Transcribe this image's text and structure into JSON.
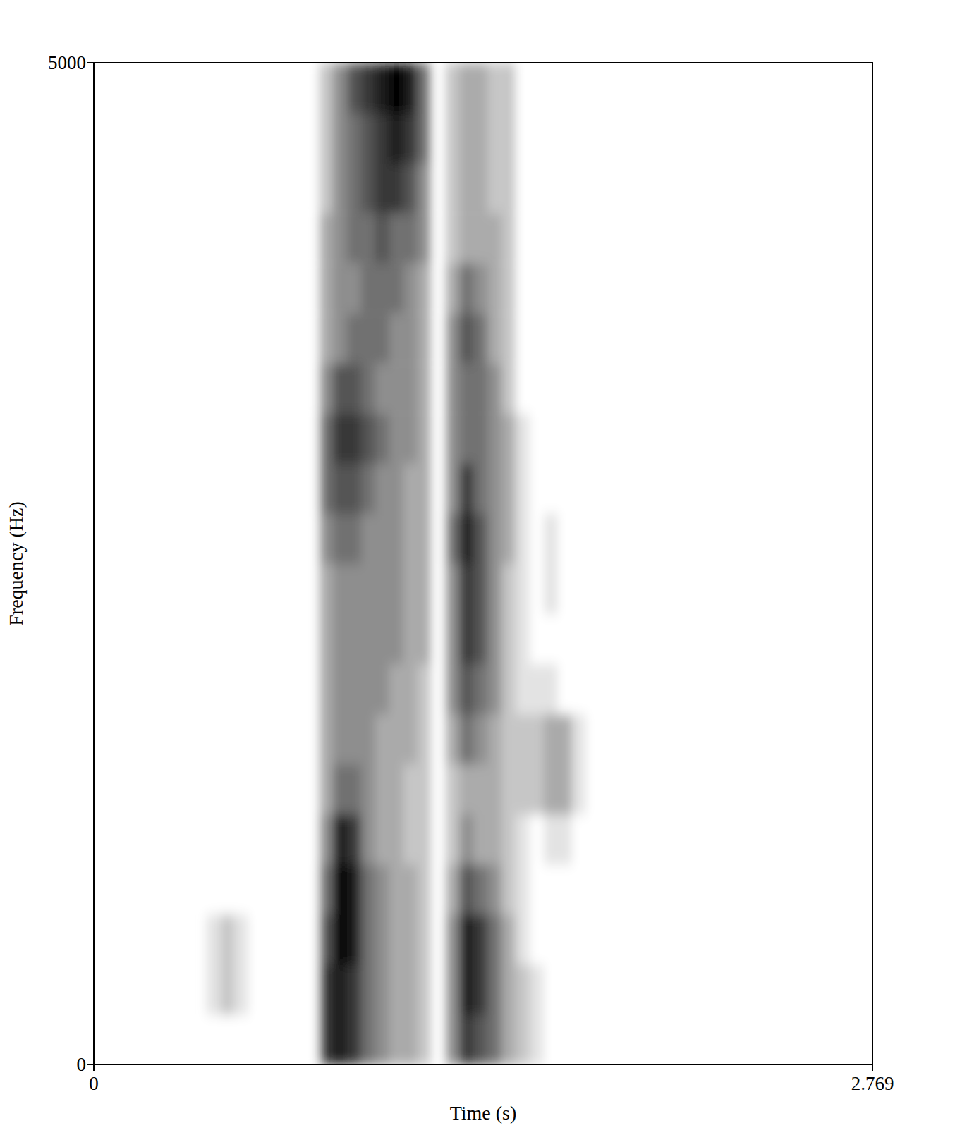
{
  "chart_data": {
    "type": "heatmap",
    "x_label": "Time (s)",
    "y_label": "Frequency (Hz)",
    "xlim": [
      0,
      2.769
    ],
    "ylim": [
      0,
      5000
    ],
    "xticks": [
      0,
      2.769
    ],
    "yticks": [
      0,
      5000
    ],
    "zlim": [
      0,
      9
    ],
    "x": [
      0.425,
      0.475,
      0.525,
      0.575,
      0.625,
      0.675,
      0.725,
      0.775,
      0.825,
      0.875,
      0.925,
      0.975,
      1.025,
      1.075,
      1.125,
      1.175,
      1.225,
      1.275,
      1.325,
      1.375,
      1.425,
      1.475,
      1.525,
      1.575,
      1.625,
      1.675,
      1.725,
      1.775
    ],
    "y": [
      125,
      375,
      625,
      875,
      1125,
      1375,
      1625,
      1875,
      2125,
      2375,
      2625,
      2875,
      3125,
      3375,
      3625,
      3875,
      4125,
      4375,
      4625,
      4875
    ],
    "cells": [
      [
        0,
        0,
        0,
        0,
        0,
        0,
        0,
        0,
        7,
        8,
        7,
        5,
        4,
        3,
        3,
        2,
        0,
        4,
        7,
        6,
        5,
        3,
        2,
        1,
        0,
        0,
        0,
        0
      ],
      [
        1,
        2,
        1,
        0,
        0,
        0,
        0,
        0,
        7,
        8,
        7,
        5,
        4,
        3,
        3,
        2,
        0,
        4,
        8,
        7,
        5,
        3,
        2,
        1,
        0,
        0,
        0,
        0
      ],
      [
        1,
        2,
        1,
        0,
        0,
        0,
        0,
        0,
        6,
        9,
        8,
        5,
        4,
        3,
        3,
        2,
        0,
        4,
        8,
        7,
        5,
        3,
        1,
        0,
        0,
        0,
        0,
        0
      ],
      [
        0,
        0,
        0,
        0,
        0,
        0,
        0,
        0,
        5,
        9,
        8,
        5,
        4,
        3,
        3,
        2,
        0,
        3,
        6,
        5,
        4,
        2,
        1,
        0,
        0,
        0,
        0,
        0
      ],
      [
        0,
        0,
        0,
        0,
        0,
        0,
        0,
        0,
        4,
        8,
        7,
        4,
        3,
        3,
        2,
        2,
        0,
        2,
        4,
        3,
        3,
        2,
        1,
        0,
        1,
        1,
        0,
        0
      ],
      [
        0,
        0,
        0,
        0,
        0,
        0,
        0,
        0,
        3,
        5,
        5,
        4,
        3,
        3,
        2,
        2,
        0,
        2,
        3,
        3,
        3,
        2,
        2,
        2,
        3,
        3,
        1,
        0
      ],
      [
        0,
        0,
        0,
        0,
        0,
        0,
        0,
        0,
        3,
        4,
        4,
        4,
        3,
        3,
        3,
        2,
        0,
        3,
        5,
        4,
        3,
        2,
        2,
        2,
        3,
        3,
        1,
        0
      ],
      [
        0,
        0,
        0,
        0,
        0,
        0,
        0,
        0,
        3,
        4,
        4,
        4,
        4,
        3,
        3,
        2,
        0,
        4,
        6,
        5,
        4,
        2,
        1,
        1,
        1,
        0,
        0,
        0
      ],
      [
        0,
        0,
        0,
        0,
        0,
        0,
        0,
        0,
        3,
        4,
        4,
        4,
        4,
        4,
        3,
        3,
        0,
        4,
        7,
        6,
        4,
        2,
        1,
        0,
        0,
        0,
        0,
        0
      ],
      [
        0,
        0,
        0,
        0,
        0,
        0,
        0,
        0,
        3,
        4,
        4,
        4,
        4,
        4,
        3,
        3,
        0,
        4,
        7,
        6,
        4,
        2,
        1,
        0,
        1,
        0,
        0,
        0
      ],
      [
        0,
        0,
        0,
        0,
        0,
        0,
        0,
        0,
        4,
        5,
        5,
        4,
        4,
        4,
        3,
        3,
        0,
        5,
        8,
        6,
        4,
        3,
        1,
        0,
        1,
        0,
        0,
        0
      ],
      [
        0,
        0,
        0,
        0,
        0,
        0,
        0,
        0,
        5,
        6,
        6,
        5,
        4,
        4,
        3,
        3,
        0,
        4,
        7,
        5,
        4,
        3,
        1,
        0,
        0,
        0,
        0,
        0
      ],
      [
        0,
        0,
        0,
        0,
        0,
        0,
        0,
        0,
        5,
        7,
        7,
        6,
        5,
        4,
        4,
        3,
        0,
        4,
        5,
        5,
        4,
        3,
        1,
        0,
        0,
        0,
        0,
        0
      ],
      [
        0,
        0,
        0,
        0,
        0,
        0,
        0,
        0,
        4,
        6,
        6,
        5,
        4,
        4,
        4,
        3,
        0,
        4,
        5,
        5,
        4,
        2,
        0,
        0,
        0,
        0,
        0,
        0
      ],
      [
        0,
        0,
        0,
        0,
        0,
        0,
        0,
        0,
        3,
        4,
        5,
        5,
        5,
        4,
        4,
        3,
        0,
        4,
        6,
        5,
        3,
        2,
        0,
        0,
        0,
        0,
        0,
        0
      ],
      [
        0,
        0,
        0,
        0,
        0,
        0,
        0,
        0,
        3,
        4,
        4,
        5,
        5,
        5,
        4,
        3,
        0,
        3,
        5,
        4,
        3,
        2,
        0,
        0,
        0,
        0,
        0,
        0
      ],
      [
        0,
        0,
        0,
        0,
        0,
        0,
        0,
        0,
        3,
        4,
        5,
        5,
        6,
        5,
        5,
        4,
        0,
        2,
        3,
        3,
        3,
        2,
        0,
        0,
        0,
        0,
        0,
        0
      ],
      [
        0,
        0,
        0,
        0,
        0,
        0,
        0,
        0,
        2,
        4,
        5,
        6,
        7,
        7,
        6,
        4,
        0,
        2,
        3,
        3,
        2,
        2,
        0,
        0,
        0,
        0,
        0,
        0
      ],
      [
        0,
        0,
        0,
        0,
        0,
        0,
        0,
        0,
        2,
        4,
        5,
        6,
        7,
        8,
        7,
        5,
        0,
        2,
        3,
        3,
        2,
        2,
        0,
        0,
        0,
        0,
        0,
        0
      ],
      [
        0,
        0,
        0,
        0,
        0,
        0,
        0,
        0,
        2,
        4,
        6,
        7,
        8,
        9,
        8,
        5,
        0,
        2,
        3,
        3,
        2,
        2,
        0,
        0,
        0,
        0,
        0,
        0
      ]
    ]
  }
}
